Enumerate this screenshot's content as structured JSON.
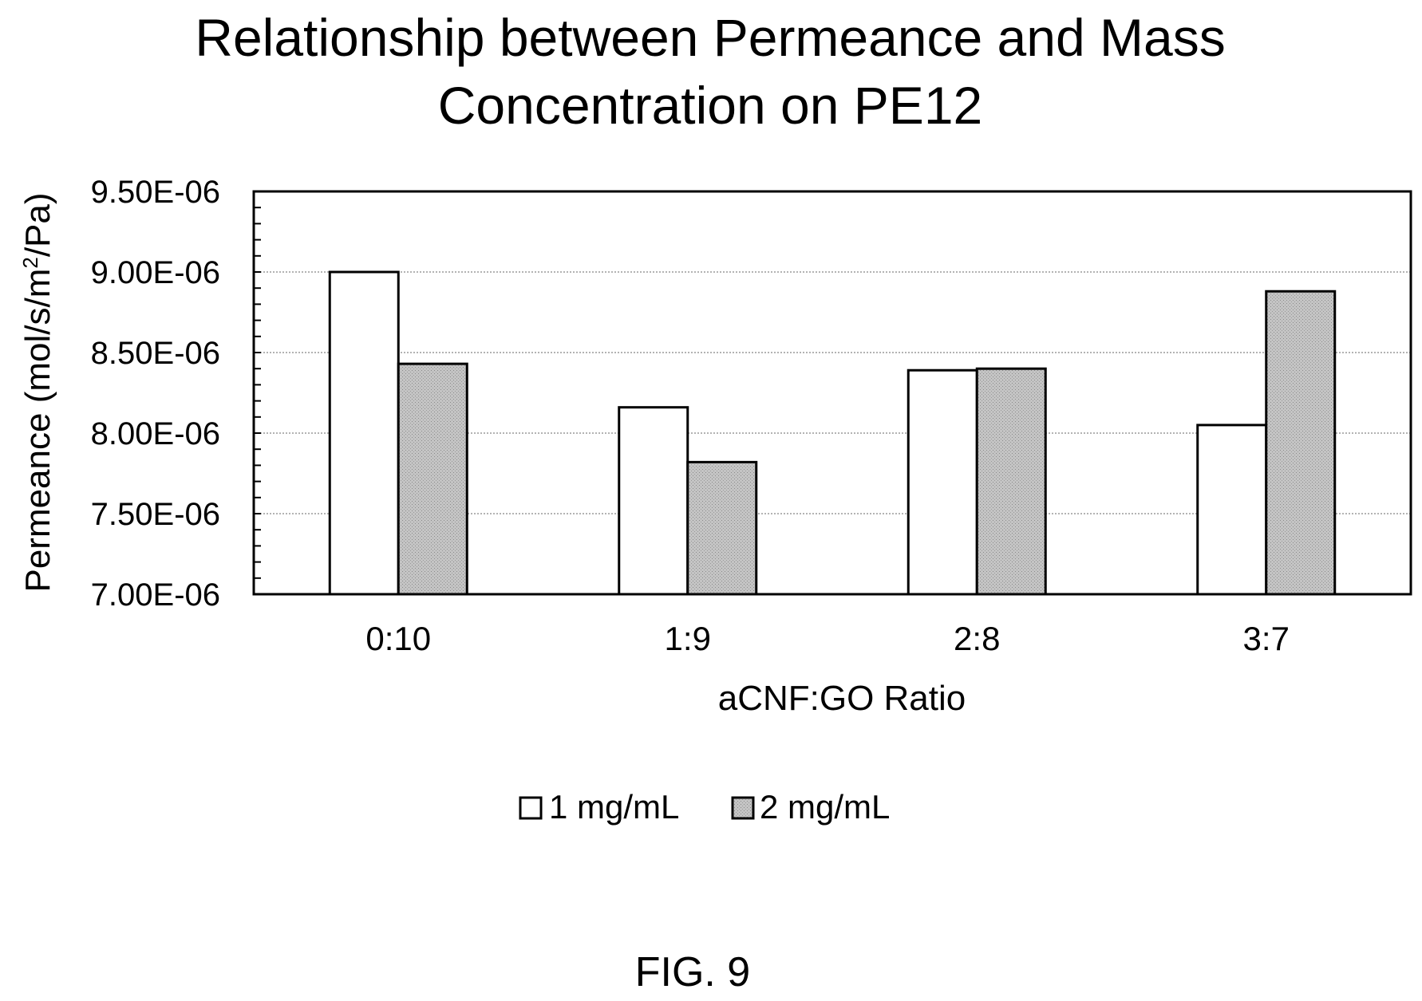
{
  "chart_data": {
    "type": "bar",
    "title_lines": [
      "Relationship between Permeance and Mass",
      "Concentration on PE12"
    ],
    "xlabel": "aCNF:GO Ratio",
    "ylabel": {
      "main": "Permeance (mol/s/m",
      "sup": "2",
      "end": "/Pa)"
    },
    "categories": [
      "0:10",
      "1:9",
      "2:8",
      "3:7"
    ],
    "series": [
      {
        "name": "1 mg/mL",
        "values": [
          9e-06,
          8.16e-06,
          8.39e-06,
          8.05e-06
        ],
        "color": "#ffffff"
      },
      {
        "name": "2 mg/mL",
        "values": [
          8.43e-06,
          7.82e-06,
          8.4e-06,
          8.88e-06
        ],
        "color": "#bdbdbd"
      }
    ],
    "ylim": [
      7e-06,
      9.5e-06
    ],
    "yticks": [
      {
        "value": 7e-06,
        "label": "7.00E-06"
      },
      {
        "value": 7.5e-06,
        "label": "7.50E-06"
      },
      {
        "value": 8e-06,
        "label": "8.00E-06"
      },
      {
        "value": 8.5e-06,
        "label": "8.50E-06"
      },
      {
        "value": 9e-06,
        "label": "9.00E-06"
      },
      {
        "value": 9.5e-06,
        "label": "9.50E-06"
      }
    ],
    "grid": true,
    "legend_position": "bottom-center"
  },
  "caption": "FIG. 9"
}
